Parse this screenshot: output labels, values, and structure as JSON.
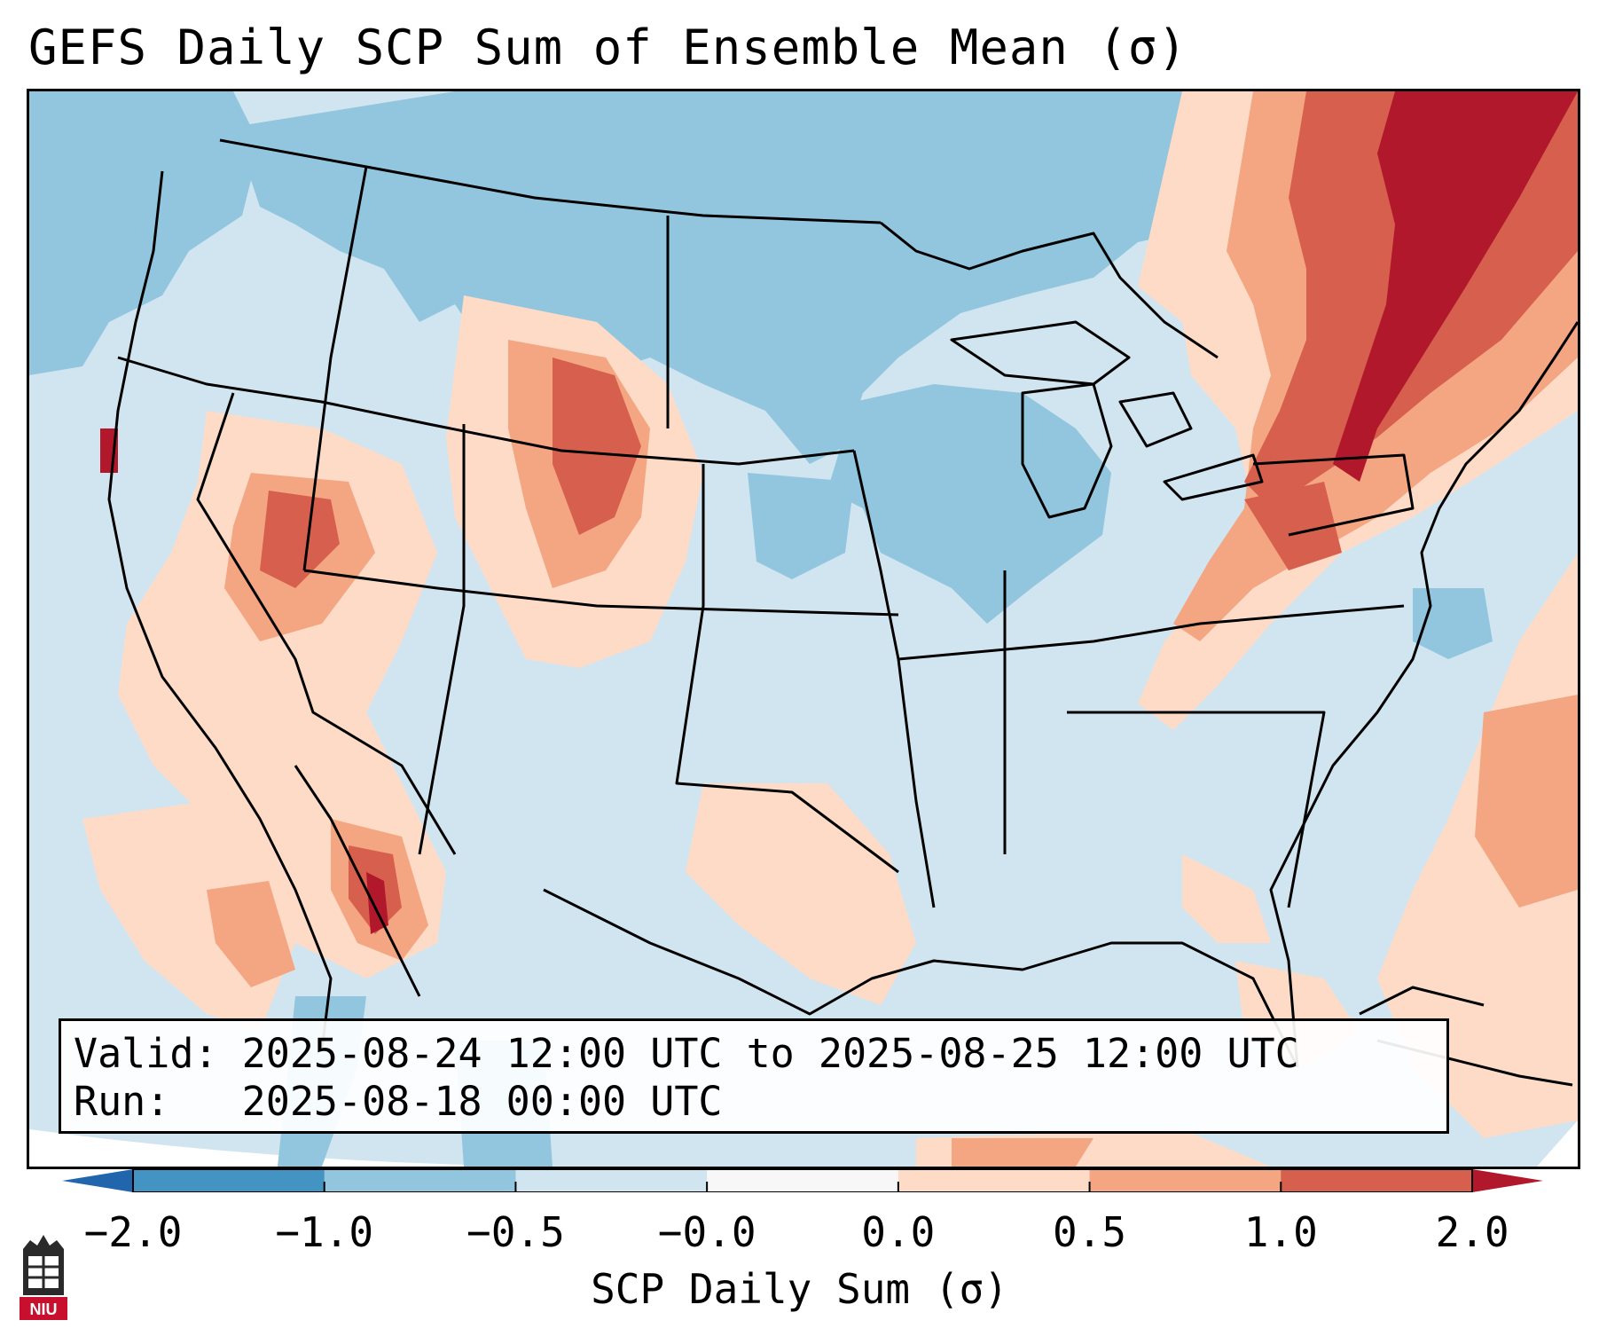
{
  "title": "GEFS Daily SCP Sum of Ensemble Mean (σ)",
  "info": {
    "valid_label": "Valid:",
    "valid_value": "2025-08-24 12:00 UTC to 2025-08-25 12:00 UTC",
    "run_label": "Run:",
    "run_value": "2025-08-18 00:00 UTC"
  },
  "colorbar": {
    "label": "SCP Daily Sum (σ)",
    "ticks": [
      "−2.0",
      "−1.0",
      "−0.5",
      "−0.0",
      "0.0",
      "0.5",
      "1.0",
      "2.0"
    ],
    "bins": [
      {
        "color": "#4393c3"
      },
      {
        "color": "#92c5de"
      },
      {
        "color": "#d1e5f0"
      },
      {
        "color": "#f7f7f7"
      },
      {
        "color": "#fddbc7"
      },
      {
        "color": "#f4a582"
      },
      {
        "color": "#d6604d"
      }
    ],
    "under_color": "#2166ac",
    "over_color": "#b2182b"
  },
  "logo": {
    "text": "NIU",
    "color": "#c8102e"
  },
  "map": {
    "background_color": "#d1e5f0",
    "regions": [
      {
        "name": "northern-plains-low",
        "value": -0.7
      },
      {
        "name": "upper-midwest-low",
        "value": -0.7
      },
      {
        "name": "pacific-northwest-low",
        "value": -0.7
      },
      {
        "name": "wyoming-colorado-high",
        "value": 0.8
      },
      {
        "name": "nevada-high",
        "value": 0.6
      },
      {
        "name": "arizona-sonora-high",
        "value": 1.2
      },
      {
        "name": "northeast-high",
        "value": 1.4
      },
      {
        "name": "mid-atlantic-high",
        "value": 0.9
      },
      {
        "name": "atlantic-high",
        "value": 0.6
      },
      {
        "name": "texas-gulf-high",
        "value": 0.3
      }
    ]
  }
}
